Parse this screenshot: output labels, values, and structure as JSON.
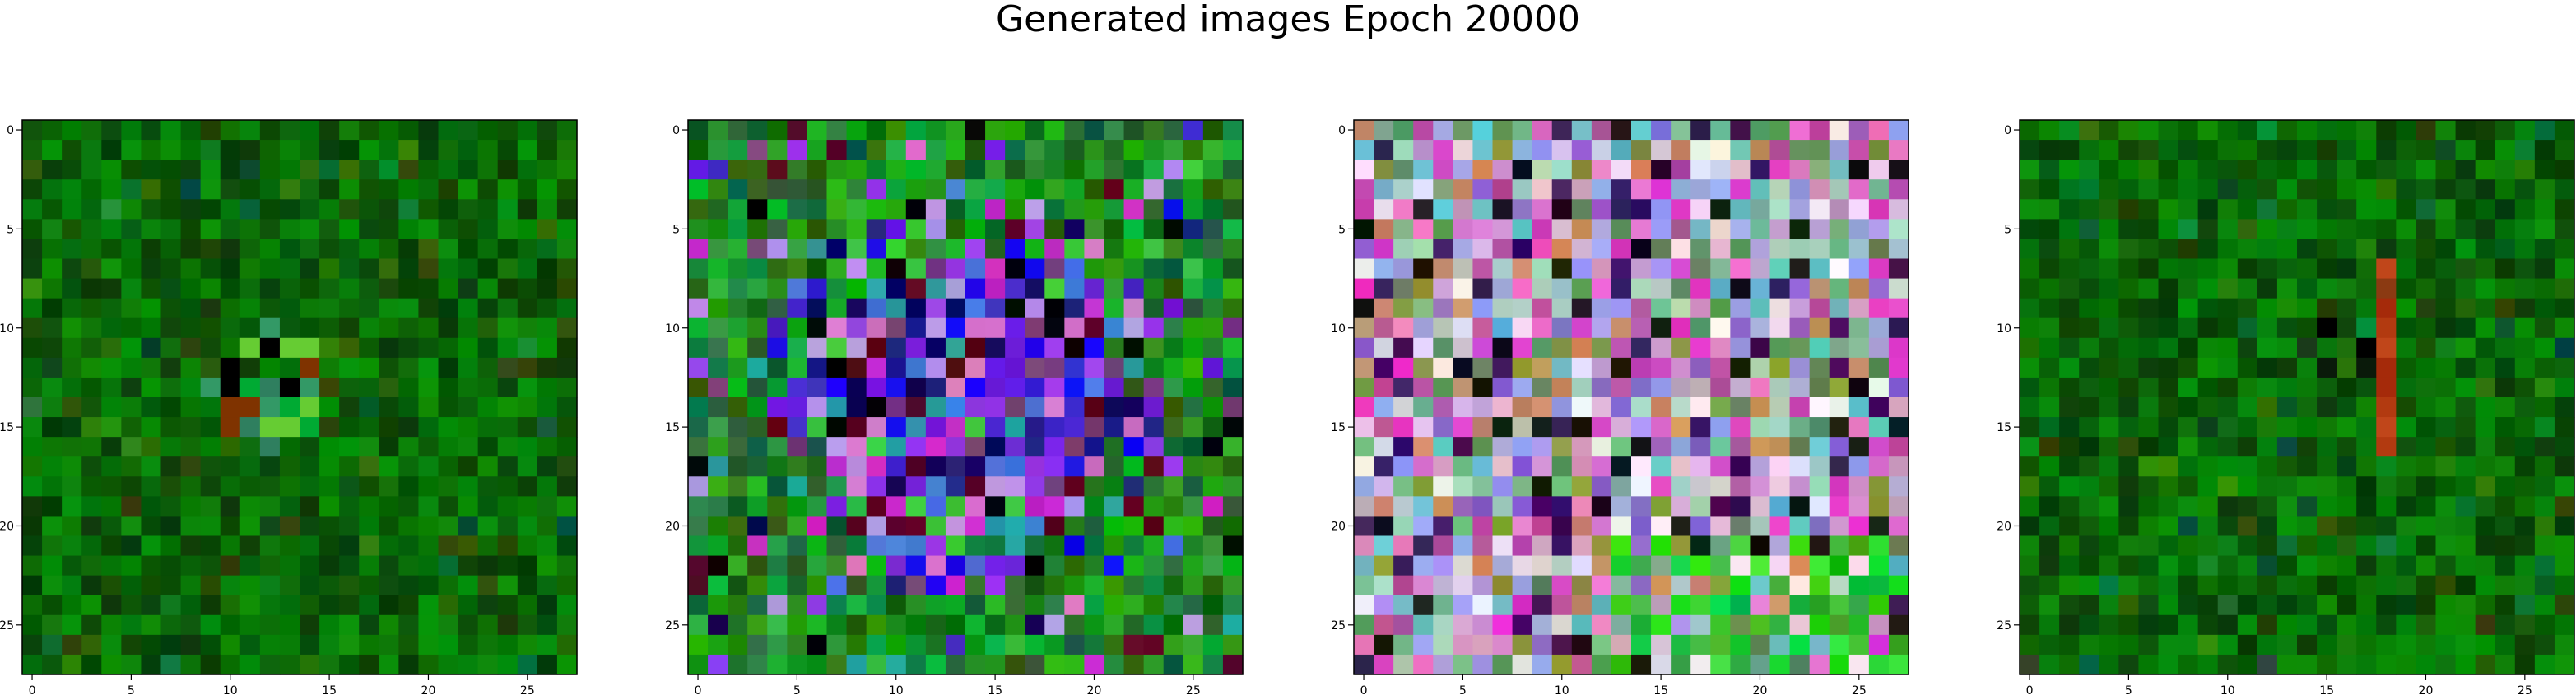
{
  "title": "Generated images Epoch 20000",
  "chart_data": {
    "type": "heatmap",
    "title": "Generated images Epoch 20000",
    "description_of_panels": "four 28x28 RGB generated images shown with imshow",
    "panels": [
      {
        "panel": 1,
        "grid_size": [
          28,
          28
        ],
        "xlim": [
          -0.5,
          27.5
        ],
        "ylim": [
          27.5,
          -0.5
        ],
        "xticks": [
          0,
          5,
          10,
          15,
          20,
          25
        ],
        "yticks": [
          0,
          5,
          10,
          15,
          20,
          25
        ],
        "palette": "green",
        "features": [
          {
            "kind": "blob",
            "row": 13,
            "col": 12,
            "radius": 3,
            "colors": [
              "#66cc33",
              "#00aa33",
              "#339966",
              "#000000",
              "#2f7f5f",
              "#7f3300"
            ]
          }
        ]
      },
      {
        "panel": 2,
        "grid_size": [
          28,
          28
        ],
        "xlim": [
          -0.5,
          27.5
        ],
        "ylim": [
          27.5,
          -0.5
        ],
        "xticks": [
          0,
          5,
          10,
          15,
          20,
          25
        ],
        "yticks": [
          0,
          5,
          10,
          15,
          20,
          25
        ],
        "palette": "blue-purple-center-green-edge",
        "features": []
      },
      {
        "panel": 3,
        "grid_size": [
          28,
          28
        ],
        "xlim": [
          -0.5,
          27.5
        ],
        "ylim": [
          27.5,
          -0.5
        ],
        "xticks": [
          0,
          5,
          10,
          15,
          20,
          25
        ],
        "yticks": [
          0,
          5,
          10,
          15,
          20,
          25
        ],
        "palette": "pastel-multicolor",
        "features": []
      },
      {
        "panel": 4,
        "grid_size": [
          28,
          28
        ],
        "xlim": [
          -0.5,
          27.5
        ],
        "ylim": [
          27.5,
          -0.5
        ],
        "xticks": [
          0,
          5,
          10,
          15,
          20,
          25
        ],
        "yticks": [
          0,
          5,
          10,
          15,
          20,
          25
        ],
        "palette": "green",
        "features": [
          {
            "kind": "vertical-stripe",
            "col": 18,
            "rows": [
              7,
              16
            ],
            "colors": [
              "#a52a0a",
              "#b23a10",
              "#c0461a",
              "#8b3a12"
            ]
          },
          {
            "kind": "dark-patch",
            "row": 11,
            "col": 16,
            "radius": 2,
            "colors": [
              "#000000",
              "#0a1a0a",
              "#1a3a1a"
            ]
          }
        ]
      }
    ]
  }
}
